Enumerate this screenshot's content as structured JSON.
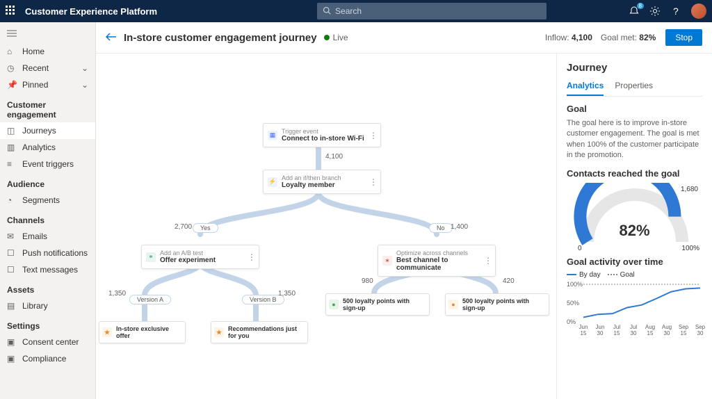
{
  "app_title": "Customer Experience Platform",
  "search_placeholder": "Search",
  "notification_badge": "8",
  "nav": {
    "home": "Home",
    "recent": "Recent",
    "pinned": "Pinned",
    "groups": {
      "engagement": "Customer engagement",
      "audience": "Audience",
      "channels": "Channels",
      "assets": "Assets",
      "settings": "Settings"
    },
    "items": {
      "journeys": "Journeys",
      "analytics": "Analytics",
      "event_triggers": "Event triggers",
      "segments": "Segments",
      "emails": "Emails",
      "push": "Push notifications",
      "text": "Text messages",
      "library": "Library",
      "consent": "Consent center",
      "compliance": "Compliance"
    }
  },
  "page": {
    "title": "In-store customer engagement journey",
    "status": "Live",
    "inflow_label": "Inflow:",
    "inflow_value": "4,100",
    "goal_label": "Goal met:",
    "goal_value": "82%",
    "stop": "Stop"
  },
  "flow": {
    "trigger": {
      "sub": "Trigger event",
      "title": "Connect to in-store Wi-Fi",
      "count": "4,100",
      "icon_bg": "#eef3fc",
      "icon_color": "#4c6ef5"
    },
    "branch": {
      "sub": "Add an if/then branch",
      "title": "Loyalty member",
      "icon_bg": "#eef3fc",
      "icon_color": "#4c6ef5"
    },
    "yes": {
      "label": "Yes",
      "count": "2,700"
    },
    "no": {
      "label": "No",
      "count": "1,400"
    },
    "ab": {
      "sub": "Add an A/B test",
      "title": "Offer experiment",
      "icon_bg": "#eaf4ef",
      "icon_color": "#3a9e6d"
    },
    "opt": {
      "sub": "Optimize across channels",
      "title": "Best channel to communicate",
      "icon_bg": "#fdeeee",
      "icon_color": "#d14b4b"
    },
    "varA": {
      "label": "Version A",
      "count": "1,350"
    },
    "varB": {
      "label": "Version B",
      "count": "1,350"
    },
    "opt_left": "980",
    "opt_right": "420",
    "leaf1": {
      "title": "In-store exclusive offer",
      "icon_bg": "#fff4e5",
      "icon_color": "#e08e2b"
    },
    "leaf2": {
      "title": "Recommendations just for you",
      "icon_bg": "#fff4e5",
      "icon_color": "#e08e2b"
    },
    "leaf3": {
      "title": "500 loyalty points with sign-up",
      "icon_bg": "#e6f4ea",
      "icon_color": "#34a853"
    },
    "leaf4": {
      "title": "500 loyalty points with sign-up",
      "icon_bg": "#fff4e5",
      "icon_color": "#e08e2b"
    }
  },
  "panel": {
    "title": "Journey",
    "tab_analytics": "Analytics",
    "tab_properties": "Properties",
    "goal_title": "Goal",
    "goal_desc": "The goal here is to improve in-store customer engagement. The goal is met when 100% of the customer participate in the promotion.",
    "reached_title": "Contacts reached the goal",
    "gauge": {
      "percent_label": "82%",
      "percent": 82,
      "value": "1,680",
      "min": "0",
      "max": "100%",
      "fill_color": "#2f78d4",
      "track_color": "#e6e6e6"
    },
    "activity_title": "Goal activity over time",
    "legend_day": "By day",
    "legend_goal": "Goal",
    "linechart": {
      "y_ticks": [
        "0%",
        "50%",
        "100%"
      ],
      "x_ticks": [
        "Jun 15",
        "Jun 30",
        "Jul 15",
        "Jul 30",
        "Aug 15",
        "Aug 30",
        "Sep 15",
        "Sep 30"
      ],
      "series_color": "#2f78d4",
      "goal_color": "#888888",
      "values": [
        12,
        20,
        22,
        38,
        45,
        62,
        80,
        88,
        90
      ]
    }
  }
}
